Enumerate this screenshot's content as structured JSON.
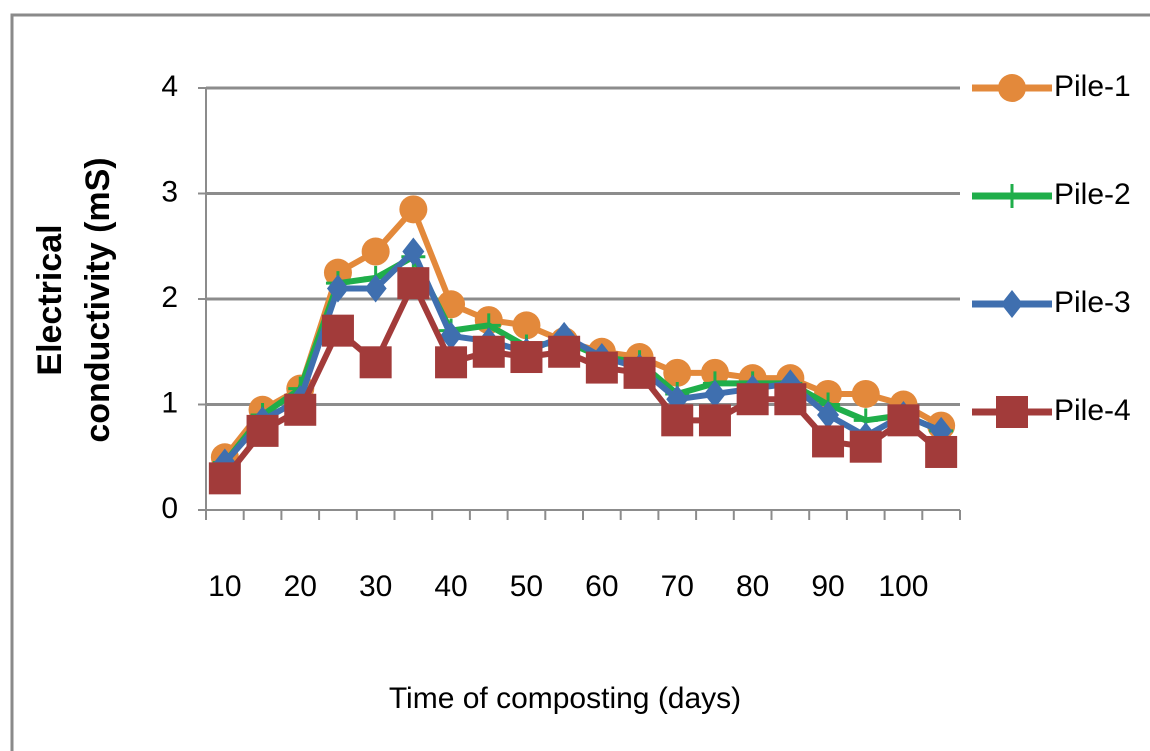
{
  "chart_data": {
    "type": "line",
    "x_label": "Time of composting (days)",
    "y_label": [
      "Electrical",
      "conductivity (mS)"
    ],
    "categories": [
      "10",
      null,
      "20",
      null,
      "30",
      null,
      "40",
      null,
      "50",
      null,
      "60",
      null,
      "70",
      null,
      "80",
      null,
      "90",
      null,
      "100",
      null
    ],
    "series": [
      {
        "name": "Pile-1",
        "color": "#e3893b",
        "marker": "circle",
        "values": [
          0.5,
          0.95,
          1.15,
          2.25,
          2.45,
          2.85,
          1.95,
          1.8,
          1.75,
          1.6,
          1.5,
          1.45,
          1.3,
          1.3,
          1.25,
          1.25,
          1.1,
          1.1,
          1.0,
          0.8
        ]
      },
      {
        "name": "Pile-2",
        "color": "#1fae4a",
        "marker": "plus",
        "values": [
          0.45,
          0.9,
          1.15,
          2.15,
          2.2,
          2.4,
          1.7,
          1.75,
          1.55,
          1.6,
          1.45,
          1.4,
          1.1,
          1.2,
          1.2,
          1.2,
          1.0,
          0.85,
          0.9,
          0.75
        ]
      },
      {
        "name": "Pile-3",
        "color": "#3f6faf",
        "marker": "diamond",
        "values": [
          0.45,
          0.85,
          1.05,
          2.1,
          2.1,
          2.45,
          1.65,
          1.6,
          1.5,
          1.65,
          1.45,
          1.35,
          1.05,
          1.1,
          1.15,
          1.2,
          0.9,
          0.7,
          0.9,
          0.75
        ]
      },
      {
        "name": "Pile-4",
        "color": "#a23b3a",
        "marker": "square",
        "values": [
          0.3,
          0.75,
          0.95,
          1.7,
          1.4,
          2.15,
          1.4,
          1.5,
          1.45,
          1.5,
          1.35,
          1.3,
          0.85,
          0.85,
          1.05,
          1.05,
          0.65,
          0.6,
          0.85,
          0.55
        ]
      }
    ],
    "ylim": [
      0,
      4
    ],
    "yticks": [
      0,
      1,
      2,
      3,
      4
    ],
    "grid": true,
    "legend": "right"
  }
}
